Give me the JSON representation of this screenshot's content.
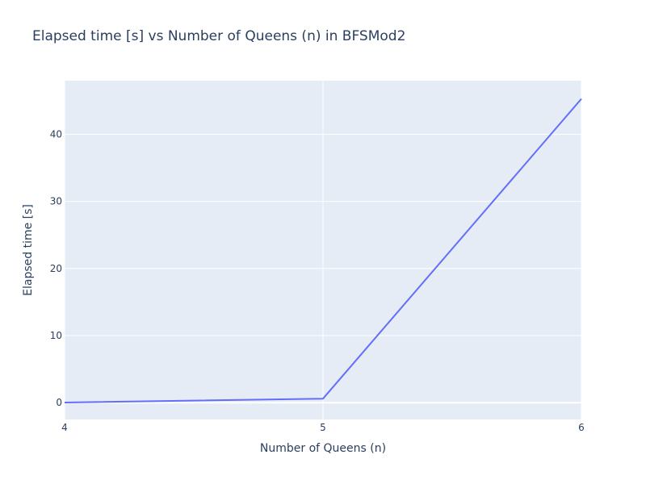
{
  "chart_data": {
    "type": "line",
    "title": "Elapsed time [s] vs Number of Queens (n) in BFSMod2",
    "xlabel": "Number of Queens (n)",
    "ylabel": "Elapsed time [s]",
    "x": [
      4,
      5,
      6
    ],
    "series": [
      {
        "values": [
          0.02,
          0.6,
          45.3
        ],
        "color": "#636efa"
      }
    ],
    "xlim": [
      4,
      6
    ],
    "ylim": [
      -2.5,
      48
    ],
    "xticks": [
      4,
      5,
      6
    ],
    "yticks": [
      0,
      10,
      20,
      30,
      40
    ],
    "xtick_labels": [
      "4",
      "5",
      "6"
    ],
    "ytick_labels": [
      "0",
      "10",
      "20",
      "30",
      "40"
    ],
    "grid": true,
    "legend": "none",
    "colors": {
      "plot_background": "#e5ecf6",
      "gridline": "#ffffff",
      "text": "#2a3f5f"
    }
  }
}
